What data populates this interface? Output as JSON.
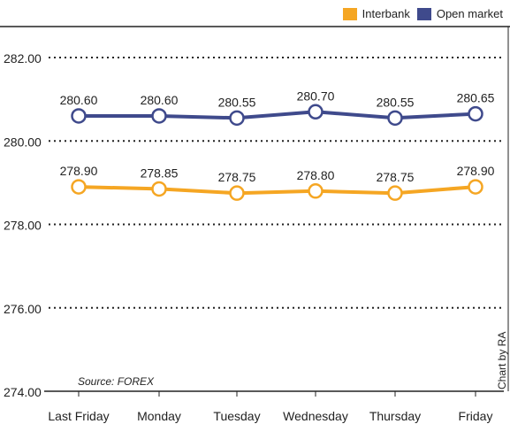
{
  "chart_data": {
    "type": "line",
    "categories": [
      "Last Friday",
      "Monday",
      "Tuesday",
      "Wednesday",
      "Thursday",
      "Friday"
    ],
    "series": [
      {
        "name": "Interbank",
        "color": "#F5A623",
        "values": [
          278.9,
          278.85,
          278.75,
          278.8,
          278.75,
          278.9
        ]
      },
      {
        "name": "Open market",
        "color": "#3F4A8C",
        "values": [
          280.6,
          280.6,
          280.55,
          280.7,
          280.55,
          280.65
        ]
      }
    ],
    "ylim": [
      274.0,
      282.0
    ],
    "yticks": [
      "274.00",
      "276.00",
      "278.00",
      "280.00",
      "282.00"
    ],
    "grid": true,
    "legend_position": "top-right",
    "source": "Source: FOREX",
    "credit": "Chart by RA"
  }
}
